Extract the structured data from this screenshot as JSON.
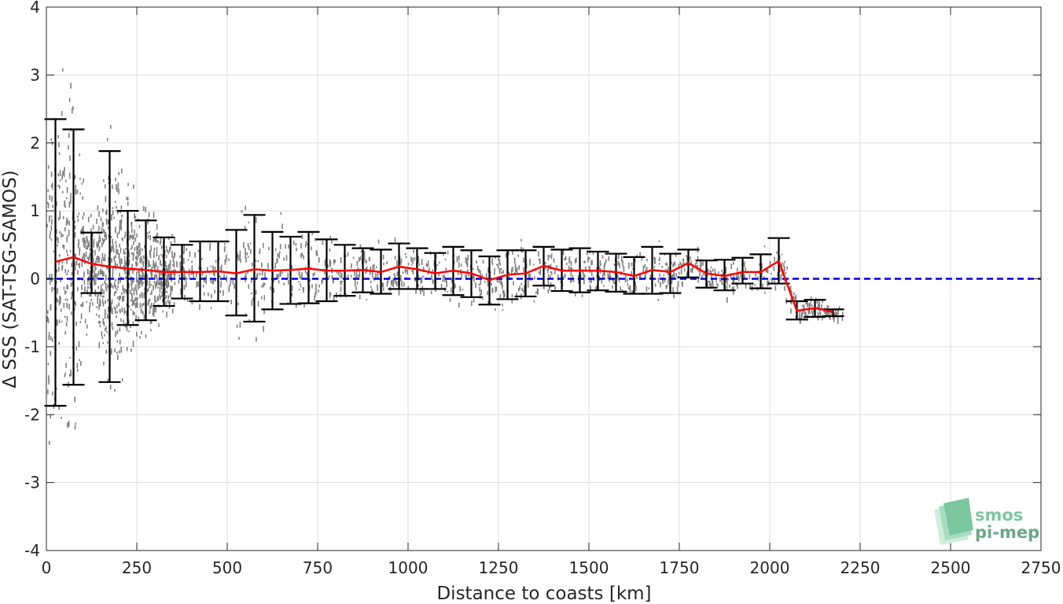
{
  "chart_data": {
    "type": "scatter",
    "title": "",
    "xlabel": "Distance to coasts [km]",
    "ylabel": "Δ SSS (SAT-TSG-SAMOS)",
    "xlim": [
      0,
      2750
    ],
    "ylim": [
      -4,
      4
    ],
    "x_ticks": [
      "0",
      "250",
      "500",
      "750",
      "1000",
      "1250",
      "1500",
      "1750",
      "2000",
      "2250",
      "2500",
      "2750"
    ],
    "y_ticks": [
      "-4",
      "-3",
      "-2",
      "-1",
      "0",
      "1",
      "2",
      "3",
      "4"
    ],
    "grid": true,
    "reference_line": {
      "y": 0,
      "color": "#0000dd",
      "style": "dashed"
    },
    "scatter_color": "#808080",
    "mean_line_color": "#ff0000",
    "errorbar_color": "#000000",
    "mean_with_std": {
      "x": [
        25,
        75,
        125,
        175,
        225,
        275,
        325,
        375,
        425,
        475,
        525,
        575,
        625,
        675,
        725,
        775,
        825,
        875,
        925,
        975,
        1025,
        1075,
        1125,
        1175,
        1225,
        1275,
        1325,
        1375,
        1425,
        1475,
        1525,
        1575,
        1625,
        1675,
        1725,
        1775,
        1825,
        1875,
        1925,
        1975,
        2025,
        2075,
        2125,
        2175
      ],
      "mean": [
        0.25,
        0.32,
        0.22,
        0.18,
        0.15,
        0.13,
        0.1,
        0.1,
        0.1,
        0.11,
        0.08,
        0.14,
        0.12,
        0.13,
        0.15,
        0.12,
        0.12,
        0.13,
        0.1,
        0.18,
        0.14,
        0.08,
        0.12,
        0.08,
        -0.02,
        0.06,
        0.08,
        0.19,
        0.12,
        0.12,
        0.12,
        0.1,
        0.04,
        0.13,
        0.1,
        0.23,
        0.08,
        0.04,
        0.1,
        0.1,
        0.26,
        -0.47,
        -0.43,
        -0.49
      ],
      "upper": [
        2.35,
        2.2,
        0.68,
        1.88,
        1.0,
        0.86,
        0.61,
        0.5,
        0.55,
        0.55,
        0.72,
        0.94,
        0.69,
        0.62,
        0.69,
        0.58,
        0.5,
        0.45,
        0.43,
        0.52,
        0.45,
        0.38,
        0.47,
        0.42,
        0.33,
        0.42,
        0.42,
        0.47,
        0.43,
        0.45,
        0.4,
        0.37,
        0.32,
        0.47,
        0.37,
        0.43,
        0.27,
        0.28,
        0.31,
        0.36,
        0.6,
        -0.33,
        -0.31,
        -0.45
      ],
      "lower": [
        -1.87,
        -1.56,
        -0.21,
        -1.52,
        -0.68,
        -0.61,
        -0.4,
        -0.29,
        -0.33,
        -0.33,
        -0.54,
        -0.63,
        -0.45,
        -0.37,
        -0.36,
        -0.33,
        -0.25,
        -0.2,
        -0.22,
        -0.15,
        -0.15,
        -0.15,
        -0.24,
        -0.27,
        -0.38,
        -0.3,
        -0.26,
        -0.1,
        -0.18,
        -0.2,
        -0.17,
        -0.19,
        -0.22,
        -0.22,
        -0.21,
        0.02,
        -0.13,
        -0.17,
        -0.07,
        -0.14,
        -0.07,
        -0.6,
        -0.56,
        -0.55
      ]
    }
  },
  "logo": {
    "line1": "smos",
    "line2": "pi-mep"
  }
}
